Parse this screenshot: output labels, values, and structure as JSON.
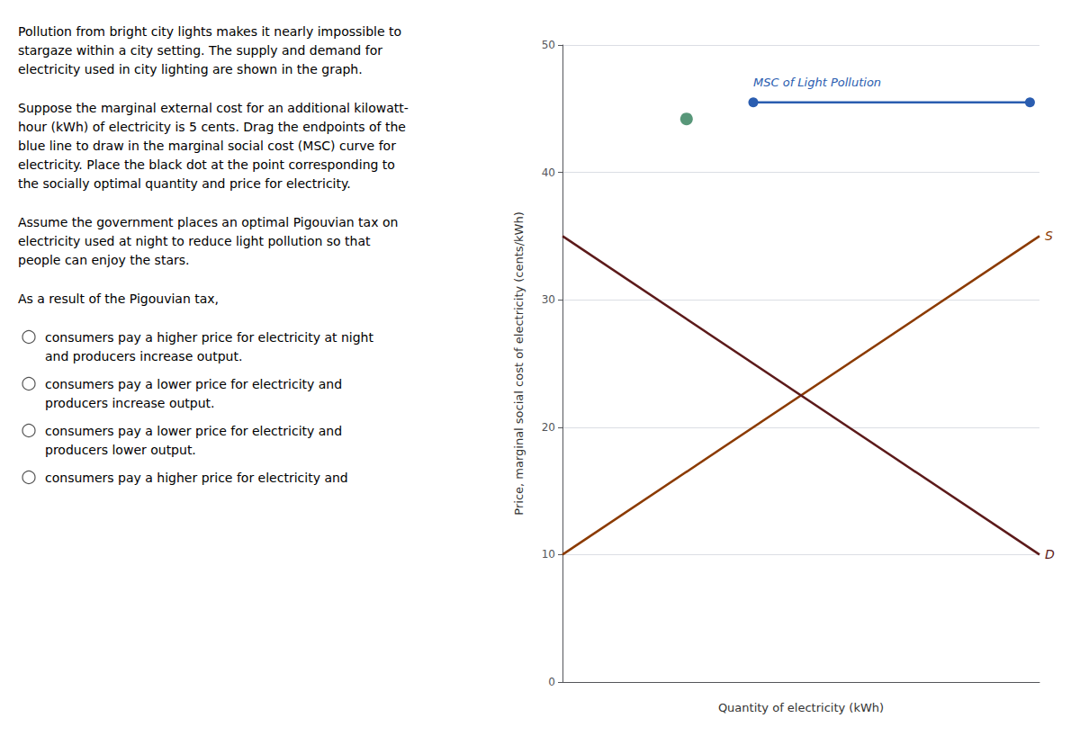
{
  "chart_data": {
    "type": "line",
    "xlabel": "Quantity of electricity (kWh)",
    "ylabel": "Price, marginal social cost of electricity (cents/kWh)",
    "xlim": [
      0,
      5
    ],
    "ylim": [
      0,
      50
    ],
    "yticks": [
      0,
      10,
      20,
      30,
      40,
      50
    ],
    "tick_labels": "y",
    "grid": true,
    "series": [
      {
        "name": "S",
        "type": "line",
        "color": "#8B3A00",
        "x": [
          0,
          5
        ],
        "values": [
          10,
          35
        ]
      },
      {
        "name": "D",
        "type": "line",
        "color": "#5C1A1A",
        "x": [
          0,
          5
        ],
        "values": [
          35,
          10
        ]
      },
      {
        "name": "MSC of Light Pollution",
        "type": "line",
        "marker": "circle",
        "color": "#2A5DB0",
        "x": [
          2.0,
          4.9
        ],
        "values": [
          45.5,
          45.5
        ]
      },
      {
        "type": "scatter",
        "marker": "circle",
        "color": "#2E7D57",
        "x": [
          1.3
        ],
        "values": [
          44.2
        ]
      }
    ],
    "annotations": [
      "Pollution from bright city lights makes it nearly impossible to\nstargaze within a city setting. The supply and demand for\nelectricity used in city lighting are shown in the graph.",
      "Suppose the marginal external cost for an additional kilowatt-\nhour (kWh) of electricity is 5 cents. Drag the endpoints of the\nblue line to draw in the marginal social cost (MSC) curve for\nelectricity. Place the black dot at the point corresponding to\nthe socially optimal quantity and price for electricity.",
      "Assume the government places an optimal Pigouvian tax on\nelectricity used at night to reduce light pollution so that\npeople can enjoy the stars.",
      "As a result of the Pigouvian tax,",
      {
        "text": "consumers pay a higher price for electricity at night\nand producers increase output.",
        "marker": "radio"
      },
      {
        "text": "consumers pay a lower price for electricity and\nproducers increase output.",
        "marker": "radio"
      },
      {
        "text": "consumers pay a lower price for electricity and\nproducers lower output.",
        "marker": "radio"
      },
      {
        "text": "consumers pay a higher price for electricity and",
        "marker": "radio"
      }
    ]
  }
}
